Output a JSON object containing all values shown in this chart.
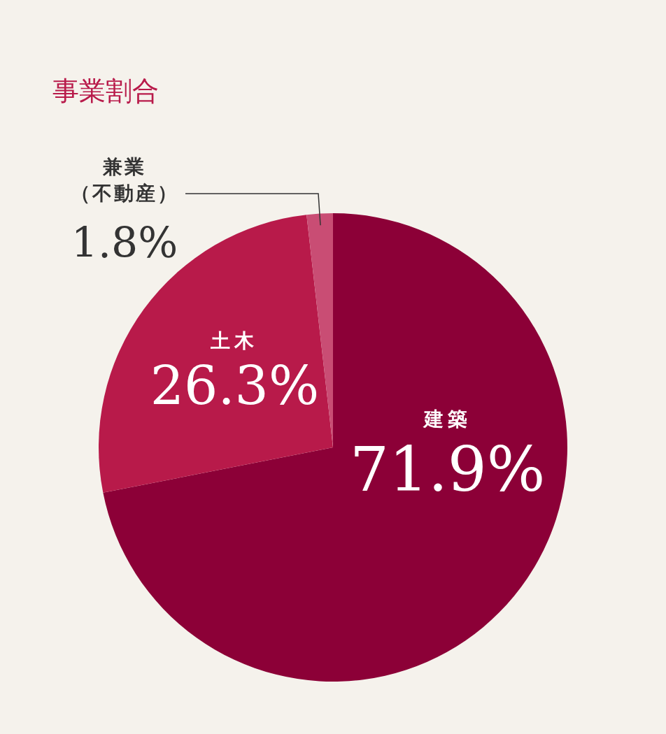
{
  "chart_data": {
    "type": "pie",
    "title": "事業割合",
    "categories": [
      "建築",
      "土木",
      "兼業（不動産）"
    ],
    "values": [
      71.9,
      26.3,
      1.8
    ],
    "value_labels": [
      "71.9%",
      "26.3%",
      "1.8%"
    ],
    "colors": [
      "#8c0037",
      "#b81a4a",
      "#c94d74"
    ],
    "legend": false
  }
}
